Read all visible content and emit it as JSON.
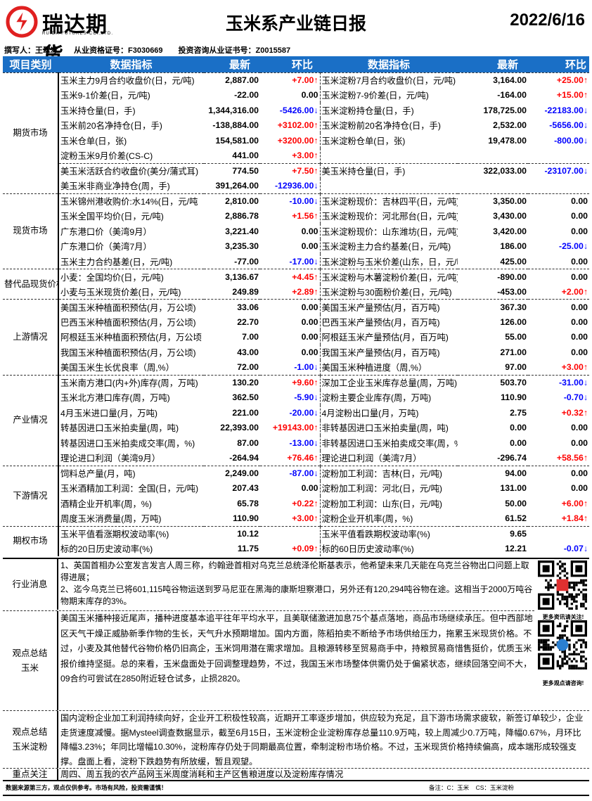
{
  "logo": {
    "name": "瑞达期货",
    "sub": "RUIDA FUTURES CO.,LTD.",
    "color": "#e02020"
  },
  "title": "玉米系产业链日报",
  "date": "2022/6/16",
  "author": {
    "writer": "撰写人：王翠冰",
    "qualification": "从业资格证号：F3030669",
    "consult": "投资咨询从业证书号：Z0015587"
  },
  "header": {
    "category": "项目类别",
    "indicator": "数据指标",
    "latest": "最新",
    "change": "环比",
    "indicator2": "数据指标",
    "latest2": "最新",
    "change2": "环比",
    "color": "#1a6fc6"
  },
  "colors": {
    "up": "#ff0000",
    "down": "#0000ff"
  },
  "sections": [
    {
      "category": "期货市场",
      "groups": [
        {
          "rows": [
            {
              "left": {
                "name": "玉米主力9月合约收盘价(日，元/吨)",
                "latest": "2,887.00",
                "change": "+7.00↑",
                "dir": "up"
              },
              "right": {
                "name": "玉米淀粉7月合约收盘价(日，元/吨)",
                "latest": "3,164.00",
                "change": "+25.00↑",
                "dir": "up"
              }
            },
            {
              "left": {
                "name": "玉米9-1价差(日，元/吨)",
                "latest": "-22.00",
                "change": "0.00",
                "dir": ""
              },
              "right": {
                "name": "玉米淀粉7-9价差(日，元/吨)",
                "latest": "-164.00",
                "change": "+15.00↑",
                "dir": "up"
              }
            },
            {
              "left": {
                "name": "玉米持仓量(日，手)",
                "latest": "1,344,316.00",
                "change": "-5426.00↓",
                "dir": "down"
              },
              "right": {
                "name": "玉米淀粉持仓量(日，手)",
                "latest": "178,725.00",
                "change": "-22183.00↓",
                "dir": "down"
              }
            },
            {
              "left": {
                "name": "玉米前20名净持仓(日，手)",
                "latest": "-138,884.00",
                "change": "+3102.00↑",
                "dir": "up"
              },
              "right": {
                "name": "玉米淀粉前20名净持仓(日，手)",
                "latest": "2,532.00",
                "change": "-5656.00↓",
                "dir": "down"
              }
            },
            {
              "left": {
                "name": "玉米仓单(日，张)",
                "latest": "154,581.00",
                "change": "+3200.00↑",
                "dir": "up"
              },
              "right": {
                "name": "玉米淀粉仓单(日，张)",
                "latest": "19,478.00",
                "change": "-800.00↓",
                "dir": "down"
              }
            },
            {
              "left": {
                "name": "淀粉玉米9月价差(CS-C)",
                "latest": "441.00",
                "change": "+3.00↑",
                "dir": "up"
              },
              "right": null
            }
          ]
        },
        {
          "rows": [
            {
              "left": {
                "name": "美玉米活跃合约收盘价(美分/蒲式耳)",
                "latest": "774.50",
                "change": "+7.50↑",
                "dir": "up"
              },
              "right": {
                "name": "美玉米持仓量(日，手)",
                "latest": "322,033.00",
                "change": "-23107.00↓",
                "dir": "down"
              }
            },
            {
              "left": {
                "name": "美玉米非商业净持仓(周，手)",
                "latest": "391,264.00",
                "change": "-12936.00↓",
                "dir": "down"
              },
              "right": null
            }
          ]
        }
      ]
    },
    {
      "category": "现货市场",
      "groups": [
        {
          "rows": [
            {
              "left": {
                "name": "玉米锦州港收购价:水14%(日，元/吨",
                "latest": "2,810.00",
                "change": "-10.00↓",
                "dir": "down"
              },
              "right": {
                "name": "玉米淀粉现价：吉林四平(日，元/吨)",
                "latest": "3,350.00",
                "change": "0.00",
                "dir": ""
              }
            },
            {
              "left": {
                "name": "玉米全国平均价(日，元/吨)",
                "latest": "2,886.78",
                "change": "+1.56↑",
                "dir": "up"
              },
              "right": {
                "name": "玉米淀粉现价：河北邢台(日，元/吨)",
                "latest": "3,430.00",
                "change": "0.00",
                "dir": ""
              }
            },
            {
              "left": {
                "name": "广东港口价（美湾9月）",
                "latest": "3,221.40",
                "change": "0.00",
                "dir": ""
              },
              "right": {
                "name": "玉米淀粉现价：山东潍坊(日，元/吨)",
                "latest": "3,420.00",
                "change": "0.00",
                "dir": ""
              }
            },
            {
              "left": {
                "name": "广东港口价（美湾7月）",
                "latest": "3,235.30",
                "change": "0.00",
                "dir": ""
              },
              "right": {
                "name": "玉米淀粉主力合约基差(日，元/吨)",
                "latest": "186.00",
                "change": "-25.00↓",
                "dir": "down"
              }
            },
            {
              "left": {
                "name": "玉米主力合约基差(日，元/吨)",
                "latest": "-77.00",
                "change": "-17.00↓",
                "dir": "down"
              },
              "right": {
                "name": "玉米淀粉与玉米价差(山东，日，元/吨",
                "latest": "425.00",
                "change": "0.00",
                "dir": ""
              }
            }
          ]
        }
      ]
    },
    {
      "category": "替代品现货价格",
      "groups": [
        {
          "rows": [
            {
              "left": {
                "name": "小麦：全国均价(日，元/吨)",
                "latest": "3,136.67",
                "change": "+4.45↑",
                "dir": "up"
              },
              "right": {
                "name": "玉米淀粉与木薯淀粉价差(日，元/吨)",
                "latest": "-890.00",
                "change": "0.00",
                "dir": ""
              }
            },
            {
              "left": {
                "name": "小麦与玉米现货价差(日，元/吨)",
                "latest": "249.89",
                "change": "+2.89↑",
                "dir": "up"
              },
              "right": {
                "name": "玉米淀粉与30面粉价差(日，元/吨)",
                "latest": "-453.00",
                "change": "+2.00↑",
                "dir": "up"
              }
            }
          ]
        }
      ]
    },
    {
      "category": "上游情况",
      "groups": [
        {
          "rows": [
            {
              "left": {
                "name": "美国玉米种植面积预估(月，万公顷)",
                "latest": "33.06",
                "change": "0.00",
                "dir": ""
              },
              "right": {
                "name": "美国玉米产量预估(月，百万吨)",
                "latest": "367.30",
                "change": "0.00",
                "dir": ""
              }
            },
            {
              "left": {
                "name": "巴西玉米种植面积预估(月，万公顷)",
                "latest": "22.70",
                "change": "0.00",
                "dir": ""
              },
              "right": {
                "name": "巴西玉米产量预估(月，百万吨)",
                "latest": "126.00",
                "change": "0.00",
                "dir": ""
              }
            },
            {
              "left": {
                "name": "阿根廷玉米种植面积预估(月，万公顷",
                "latest": "7.00",
                "change": "0.00",
                "dir": ""
              },
              "right": {
                "name": "阿根廷玉米产量预估(月，百万吨)",
                "latest": "55.00",
                "change": "0.00",
                "dir": ""
              }
            },
            {
              "left": {
                "name": "我国玉米种植面积预估(月，万公顷)",
                "latest": "43.00",
                "change": "0.00",
                "dir": ""
              },
              "right": {
                "name": "我国玉米产量预估(月，百万吨)",
                "latest": "271.00",
                "change": "0.00",
                "dir": ""
              }
            },
            {
              "left": {
                "name": "美国玉米生长优良率（周,%）",
                "latest": "72.00",
                "change": "-1.00↓",
                "dir": "down"
              },
              "right": {
                "name": "美国玉米种植进度（周,%）",
                "latest": "97.00",
                "change": "+3.00↑",
                "dir": "up"
              }
            }
          ]
        }
      ]
    },
    {
      "category": "产业情况",
      "groups": [
        {
          "rows": [
            {
              "left": {
                "name": "玉米南方港口(内+外)库存(周，万吨)",
                "latest": "130.20",
                "change": "+9.60↑",
                "dir": "up"
              },
              "right": {
                "name": "深加工企业玉米库存总量(周，万吨)",
                "latest": "503.70",
                "change": "-31.00↓",
                "dir": "down"
              }
            },
            {
              "left": {
                "name": "玉米北方港口库存(周，万吨)",
                "latest": "362.50",
                "change": "-5.90↓",
                "dir": "down"
              },
              "right": {
                "name": "淀粉主要企业库存(周，万吨)",
                "latest": "110.90",
                "change": "-0.70↓",
                "dir": "down"
              }
            },
            {
              "left": {
                "name": "4月玉米进口量(月，万吨)",
                "latest": "221.00",
                "change": "-20.00↓",
                "dir": "down"
              },
              "right": {
                "name": "4月淀粉出口量(月，万吨)",
                "latest": "2.75",
                "change": "+0.32↑",
                "dir": "up"
              }
            },
            {
              "left": {
                "name": "转基因进口玉米拍卖量(周，吨)",
                "latest": "22,393.00",
                "change": "+19143.00↑",
                "dir": "up"
              },
              "right": {
                "name": "非转基因进口玉米拍卖量(周，吨)",
                "latest": "0.00",
                "change": "0.00",
                "dir": ""
              }
            },
            {
              "left": {
                "name": "转基因进口玉米拍卖成交率(周，%)",
                "latest": "87.00",
                "change": "-13.00↓",
                "dir": "down"
              },
              "right": {
                "name": "非转基因进口玉米拍卖成交率(周，%)",
                "latest": "0.00",
                "change": "0.00",
                "dir": ""
              }
            },
            {
              "left": {
                "name": "理论进口利润（美湾9月）",
                "latest": "-264.94",
                "change": "+76.46↑",
                "dir": "up"
              },
              "right": {
                "name": "理论进口利润（美湾7月）",
                "latest": "-296.74",
                "change": "+58.56↑",
                "dir": "up"
              }
            }
          ]
        }
      ]
    },
    {
      "category": "下游情况",
      "groups": [
        {
          "rows": [
            {
              "left": {
                "name": "饲料总产量(月，吨)",
                "latest": "2,249.00",
                "change": "-87.00↓",
                "dir": "down"
              },
              "right": {
                "name": "淀粉加工利润：吉林(日，元/吨)",
                "latest": "94.00",
                "change": "0.00",
                "dir": ""
              }
            },
            {
              "left": {
                "name": "玉米酒精加工利润：全国(日，元/吨)",
                "latest": "207.43",
                "change": "0.00",
                "dir": ""
              },
              "right": {
                "name": "淀粉加工利润：河北(日，元/吨)",
                "latest": "131.00",
                "change": "0.00",
                "dir": ""
              }
            },
            {
              "left": {
                "name": "酒精企业开机率(周，%)",
                "latest": "65.78",
                "change": "+0.22↑",
                "dir": "up"
              },
              "right": {
                "name": "淀粉加工利润：山东(日，元/吨)",
                "latest": "50.00",
                "change": "+6.00↑",
                "dir": "up"
              }
            },
            {
              "left": {
                "name": "周度玉米消费量(周，万吨)",
                "latest": "110.90",
                "change": "+3.00↑",
                "dir": "up"
              },
              "right": {
                "name": "淀粉企业开机率(周，%)",
                "latest": "61.52",
                "change": "+1.84↑",
                "dir": "up"
              }
            }
          ]
        }
      ]
    },
    {
      "category": "期权市场",
      "groups": [
        {
          "rows": [
            {
              "left": {
                "name": "玉米平值看涨期权波动率(%)",
                "latest": "10.12",
                "change": "",
                "dir": ""
              },
              "right": {
                "name": "玉米平值看跌期权波动率(%)",
                "latest": "9.65",
                "change": "",
                "dir": ""
              }
            },
            {
              "left": {
                "name": "标的20日历史波动率(%)",
                "latest": "11.75",
                "change": "+0.09↑",
                "dir": "up"
              },
              "right": {
                "name": "标的60日历史波动率(%)",
                "latest": "12.21",
                "change": "-0.07↓",
                "dir": "down"
              }
            }
          ]
        }
      ]
    }
  ],
  "news": {
    "label": "行业消息",
    "lines": [
      "1、英国首相办公室发言发言人周三称，约翰逊首相对乌克兰总统泽伦斯基表示，他希望未来几天能在乌克兰谷物出口问题上取得进展；",
      "2、迄今乌克兰已将601,115吨谷物运送到罗马尼亚在黑海的康斯坦察港口，另外还有120,294吨谷物在途。这相当于2000万吨谷物期末库存的3%。"
    ]
  },
  "view_corn": {
    "label": "观点总结玉米",
    "text": "美国玉米播种接近尾声，播种进度基本追平往年平均水平，且美联储激进加息75个基点落地，商品市场继续承压。但中西部地区天气干燥正威胁新季作物的生长，天气升水预期增加。国内方面，陈稻拍卖不断给予市场供给压力，拖累玉米现货价格。不过，小麦及其他替代谷物价格仍旧高企，玉米饲用潜在需求增加。且粮源转移至贸易商手中，持粮贸易商惜售挺价，优质玉米报价维持坚挺。总的来看，玉米盘面处于回调整理趋势，不过，我国玉米市场整体供需仍处于偏紧状态，继续回落空间不大，09合约可尝试在2850附近轻仓试多，止损2820。"
  },
  "view_starch": {
    "label": "观点总结玉米淀粉",
    "text": "国内淀粉企业加工利润持续向好，企业开工积极性较高，近期开工率逐步增加，供应较为充足，且下游市场需求疲软，新签订单较少，企业走货速度减慢。据Mysteel调查数据显示，截至6月15日，玉米淀粉企业淀粉库存总量110.9万吨，较上周减少0.7万吨，降幅0.67%，月环比降幅3.23%；年同比增幅10.30%，淀粉库存仍处于同期最高位置，牵制淀粉市场价格。不过，玉米现货价格持续偏高，成本端形成较强支撑。盘面上看，淀粉下跌趋势有所放缓，暂且观望。"
  },
  "focus": {
    "label": "重点关注",
    "text": "周四、周五我的农产品网玉米周度消耗和主产区售粮进度以及淀粉库存情况"
  },
  "qr": {
    "caption1": "更多资讯请关注!",
    "caption2": "更多观点请咨询!"
  },
  "footer": {
    "disclaimer": "数据来源第三方，观点仅供参考。市场有风险，投资需谨慎！",
    "note": "备注：C：玉米    CS：玉米淀粉"
  },
  "watermark": "瑞达研究"
}
